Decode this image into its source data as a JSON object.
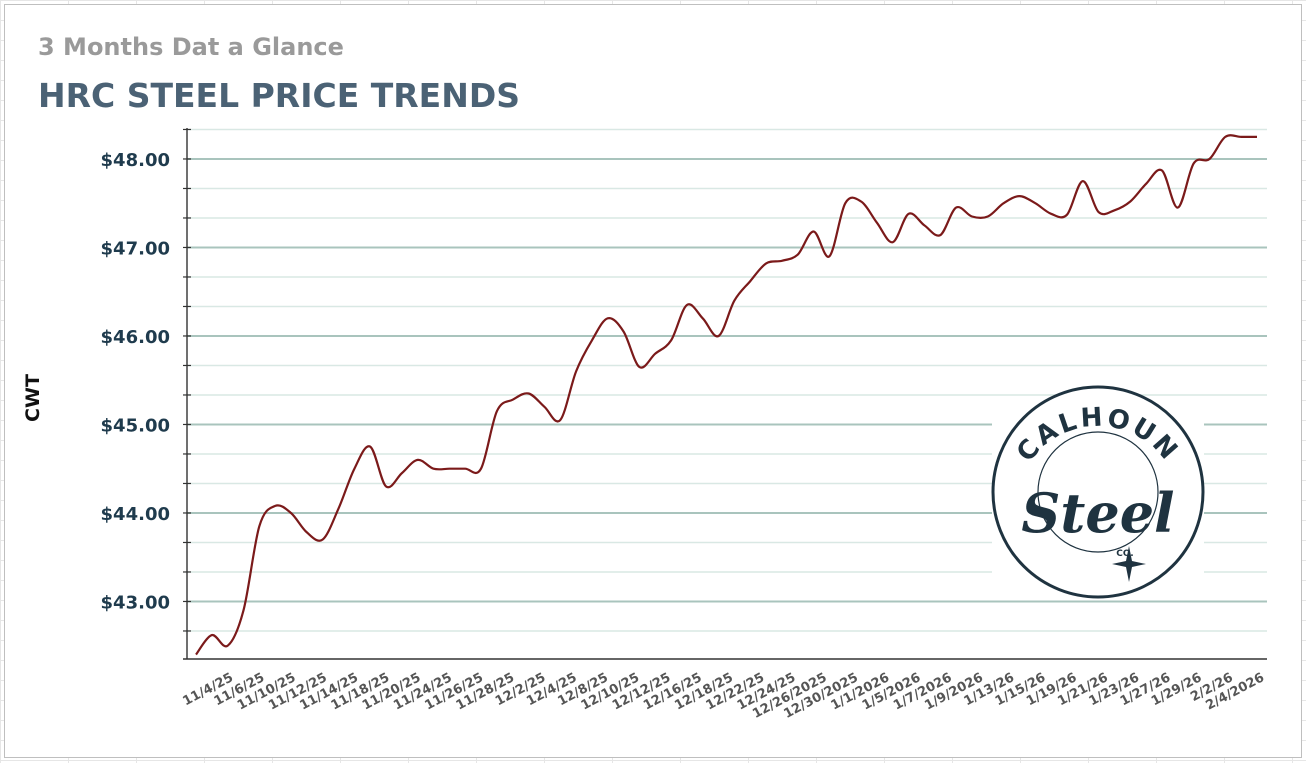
{
  "header": {
    "subtitle": "3 Months Dat a Glance",
    "title": "HRC STEEL PRICE TRENDS"
  },
  "logo": {
    "top_text": "CALHOUN",
    "script_text": "Steel",
    "small_text": "CO."
  },
  "colors": {
    "line": "#7b1a1a",
    "title": "#4b6275",
    "subtitle": "#9a9a9a",
    "axis_text": "#1f3b4d",
    "grid_major": "#a9c4bd",
    "grid_minor": "#d9e8e4",
    "logo": "#1f3340"
  },
  "chart_data": {
    "type": "line",
    "title": "HRC STEEL PRICE TRENDS",
    "subtitle": "3 Months Dat a Glance",
    "xlabel": "",
    "ylabel": "CWT",
    "ylim": [
      42.35,
      48.35
    ],
    "yticks": [
      43,
      44,
      45,
      46,
      47,
      48
    ],
    "ytick_labels": [
      "$43.00",
      "$44.00",
      "$45.00",
      "$46.00",
      "$47.00",
      "$48.00"
    ],
    "grid": true,
    "x_tick_labels": [
      "11/4/25",
      "11/6/25",
      "11/10/25",
      "11/12/25",
      "11/14/25",
      "11/18/25",
      "11/20/25",
      "11/24/25",
      "11/26/25",
      "11/28/25",
      "12/2/25",
      "12/4/25",
      "12/8/25",
      "12/10/25",
      "12/12/25",
      "12/16/25",
      "12/18/25",
      "12/22/25",
      "12/24/25",
      "12/26/2025",
      "12/30/2025",
      "1/1/2026",
      "1/5/2026",
      "1/7/2026",
      "1/9/2026",
      "1/13/26",
      "1/15/26",
      "1/19/26",
      "1/21/26",
      "1/23/26",
      "1/27/26",
      "1/29/26",
      "2/2/26",
      "2/4/2026"
    ],
    "series": [
      {
        "values": [
          42.4,
          42.62,
          42.5,
          42.9,
          43.85,
          44.08,
          44.0,
          43.78,
          43.7,
          44.05,
          44.5,
          44.75,
          44.3,
          44.45,
          44.6,
          44.5,
          44.5,
          44.5,
          44.5,
          45.15,
          45.28,
          45.35,
          45.2,
          45.05,
          45.6,
          45.95,
          46.2,
          46.05,
          45.65,
          45.8,
          45.95,
          46.35,
          46.2,
          46.0,
          46.4,
          46.62,
          46.82,
          46.85,
          46.92,
          47.18,
          46.9,
          47.5,
          47.52,
          47.28,
          47.06,
          47.38,
          47.25,
          47.14,
          47.45,
          47.35,
          47.35,
          47.5,
          47.58,
          47.5,
          47.38,
          47.37,
          47.75,
          47.4,
          47.42,
          47.52,
          47.72,
          47.87,
          47.45,
          47.95,
          48.0,
          48.25,
          48.25,
          48.25
        ]
      }
    ]
  }
}
